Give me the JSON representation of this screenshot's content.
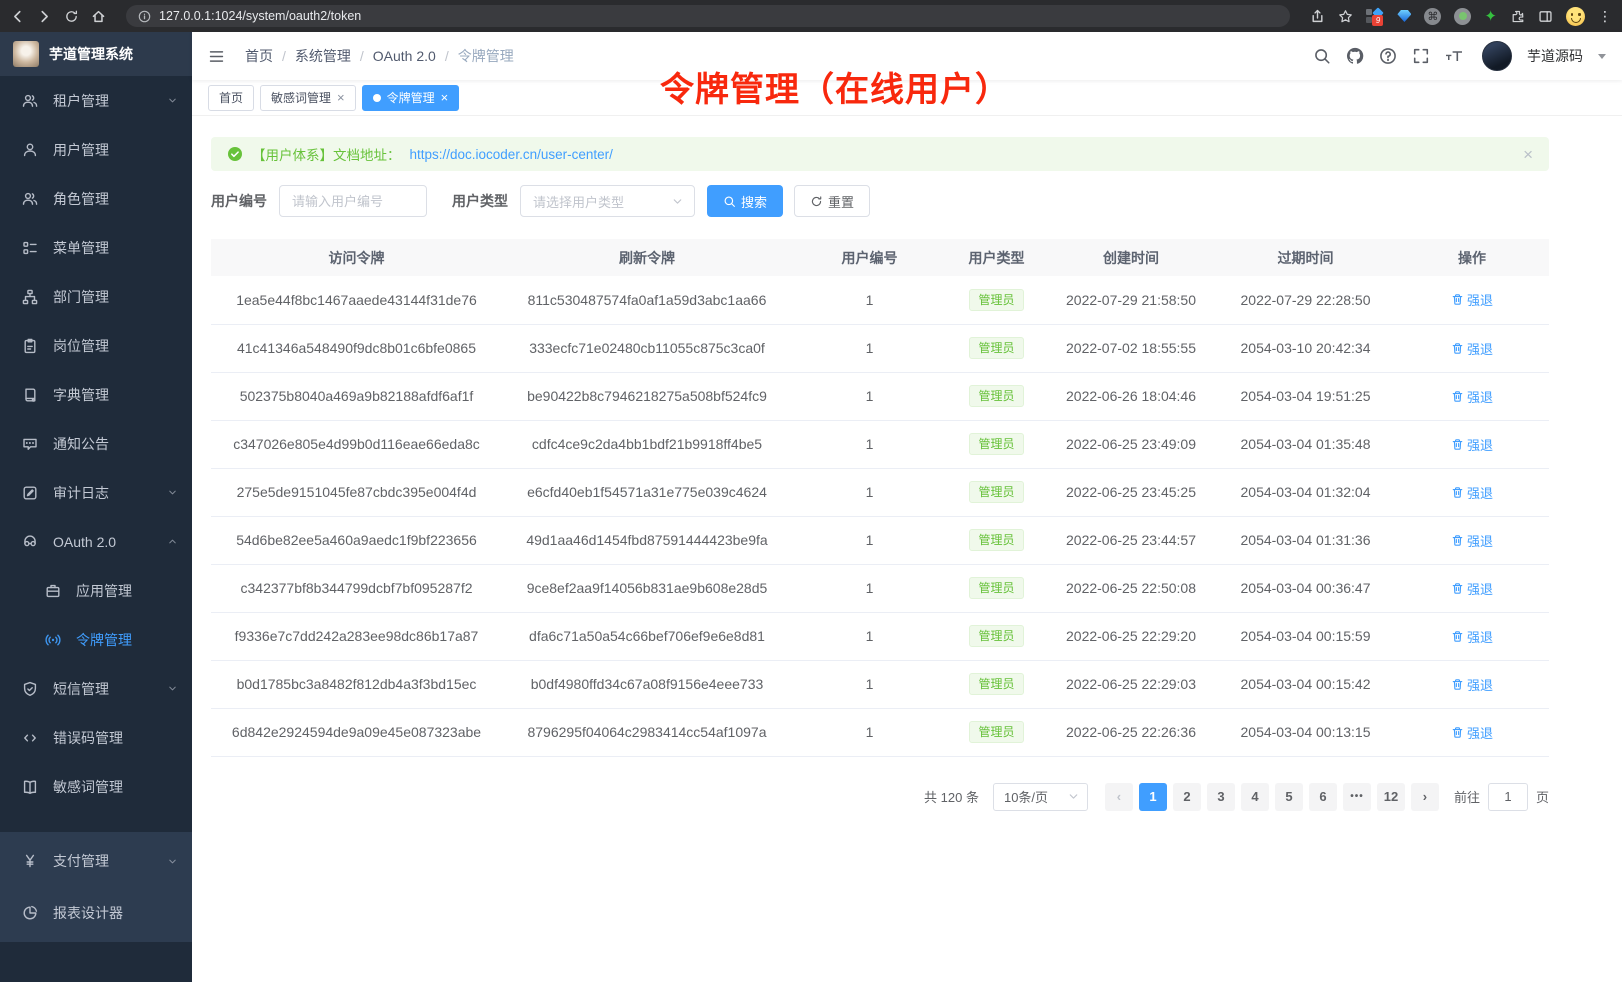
{
  "colors": {
    "accent": "#409eff",
    "success": "#67c23a",
    "annotation": "#f8280d",
    "link": "#409eff"
  },
  "browser": {
    "url": "127.0.0.1:1024/system/oauth2/token",
    "extension_badge": "9"
  },
  "app": {
    "title": "芋道管理系统"
  },
  "sidebar": {
    "items": [
      {
        "name": "tenant",
        "label": "租户管理",
        "icon": "users-icon",
        "arrow": "down"
      },
      {
        "name": "user",
        "label": "用户管理",
        "icon": "user-icon"
      },
      {
        "name": "role",
        "label": "角色管理",
        "icon": "role-icon"
      },
      {
        "name": "menu",
        "label": "菜单管理",
        "icon": "menu-tree-icon"
      },
      {
        "name": "dept",
        "label": "部门管理",
        "icon": "org-icon"
      },
      {
        "name": "post",
        "label": "岗位管理",
        "icon": "post-icon"
      },
      {
        "name": "dict",
        "label": "字典管理",
        "icon": "dict-icon"
      },
      {
        "name": "notice",
        "label": "通知公告",
        "icon": "notice-icon"
      },
      {
        "name": "audit-log",
        "label": "审计日志",
        "icon": "audit-icon",
        "arrow": "down"
      },
      {
        "name": "oauth2",
        "label": "OAuth 2.0",
        "icon": "oauth-icon",
        "arrow": "up"
      },
      {
        "name": "oauth2-app",
        "label": "应用管理",
        "icon": "app-icon",
        "sub": true
      },
      {
        "name": "oauth2-token",
        "label": "令牌管理",
        "icon": "token-icon",
        "sub": true,
        "active": true
      },
      {
        "name": "sms",
        "label": "短信管理",
        "icon": "sms-icon",
        "arrow": "down"
      },
      {
        "name": "error-code",
        "label": "错误码管理",
        "icon": "code-icon"
      },
      {
        "name": "sensitive-word",
        "label": "敏感词管理",
        "icon": "sensitive-icon"
      },
      {
        "name": "pay",
        "label": "支付管理",
        "icon": "pay-icon",
        "arrow": "down",
        "alt": true
      },
      {
        "name": "report-designer",
        "label": "报表设计器",
        "icon": "report-icon",
        "alt": true
      }
    ]
  },
  "header": {
    "breadcrumb": [
      "首页",
      "系统管理",
      "OAuth 2.0",
      "令牌管理"
    ],
    "username": "芋道源码"
  },
  "tabs": [
    {
      "label": "首页"
    },
    {
      "label": "敏感词管理",
      "closable": true
    },
    {
      "label": "令牌管理",
      "closable": true,
      "active": true
    }
  ],
  "annotation": {
    "text": "令牌管理（在线用户）"
  },
  "alert": {
    "prefix": "【用户体系】文档地址：",
    "link": "https://doc.iocoder.cn/user-center/"
  },
  "filters": {
    "user_id_label": "用户编号",
    "user_id_placeholder": "请输入用户编号",
    "user_type_label": "用户类型",
    "user_type_placeholder": "请选择用户类型",
    "search_label": "搜索",
    "reset_label": "重置"
  },
  "table": {
    "columns": [
      "访问令牌",
      "刷新令牌",
      "用户编号",
      "用户类型",
      "创建时间",
      "过期时间",
      "操作"
    ],
    "action_label": "强退",
    "rows": [
      {
        "access_token": "1ea5e44f8bc1467aaede43144f31de76",
        "refresh_token": "811c530487574fa0af1a59d3abc1aa66",
        "user_id": "1",
        "user_type": "管理员",
        "create_time": "2022-07-29 21:58:50",
        "expire_time": "2022-07-29 22:28:50"
      },
      {
        "access_token": "41c41346a548490f9dc8b01c6bfe0865",
        "refresh_token": "333ecfc71e02480cb11055c875c3ca0f",
        "user_id": "1",
        "user_type": "管理员",
        "create_time": "2022-07-02 18:55:55",
        "expire_time": "2054-03-10 20:42:34"
      },
      {
        "access_token": "502375b8040a469a9b82188afdf6af1f",
        "refresh_token": "be90422b8c7946218275a508bf524fc9",
        "user_id": "1",
        "user_type": "管理员",
        "create_time": "2022-06-26 18:04:46",
        "expire_time": "2054-03-04 19:51:25"
      },
      {
        "access_token": "c347026e805e4d99b0d116eae66eda8c",
        "refresh_token": "cdfc4ce9c2da4bb1bdf21b9918ff4be5",
        "user_id": "1",
        "user_type": "管理员",
        "create_time": "2022-06-25 23:49:09",
        "expire_time": "2054-03-04 01:35:48"
      },
      {
        "access_token": "275e5de9151045fe87cbdc395e004f4d",
        "refresh_token": "e6cfd40eb1f54571a31e775e039c4624",
        "user_id": "1",
        "user_type": "管理员",
        "create_time": "2022-06-25 23:45:25",
        "expire_time": "2054-03-04 01:32:04"
      },
      {
        "access_token": "54d6be82ee5a460a9aedc1f9bf223656",
        "refresh_token": "49d1aa46d1454fbd87591444423be9fa",
        "user_id": "1",
        "user_type": "管理员",
        "create_time": "2022-06-25 23:44:57",
        "expire_time": "2054-03-04 01:31:36"
      },
      {
        "access_token": "c342377bf8b344799dcbf7bf095287f2",
        "refresh_token": "9ce8ef2aa9f14056b831ae9b608e28d5",
        "user_id": "1",
        "user_type": "管理员",
        "create_time": "2022-06-25 22:50:08",
        "expire_time": "2054-03-04 00:36:47"
      },
      {
        "access_token": "f9336e7c7dd242a283ee98dc86b17a87",
        "refresh_token": "dfa6c71a50a54c66bef706ef9e6e8d81",
        "user_id": "1",
        "user_type": "管理员",
        "create_time": "2022-06-25 22:29:20",
        "expire_time": "2054-03-04 00:15:59"
      },
      {
        "access_token": "b0d1785bc3a8482f812db4a3f3bd15ec",
        "refresh_token": "b0df4980ffd34c67a08f9156e4eee733",
        "user_id": "1",
        "user_type": "管理员",
        "create_time": "2022-06-25 22:29:03",
        "expire_time": "2054-03-04 00:15:42"
      },
      {
        "access_token": "6d842e2924594de9a09e45e087323abe",
        "refresh_token": "8796295f04064c2983414cc54af1097a",
        "user_id": "1",
        "user_type": "管理员",
        "create_time": "2022-06-25 22:26:36",
        "expire_time": "2054-03-04 00:13:15"
      }
    ]
  },
  "pagination": {
    "total": "共 120 条",
    "page_size": "10条/页",
    "pages": [
      "1",
      "2",
      "3",
      "4",
      "5",
      "6",
      "•••",
      "12"
    ],
    "current": "1",
    "goto_label": "前往",
    "goto_value": "1",
    "goto_suffix": "页"
  }
}
